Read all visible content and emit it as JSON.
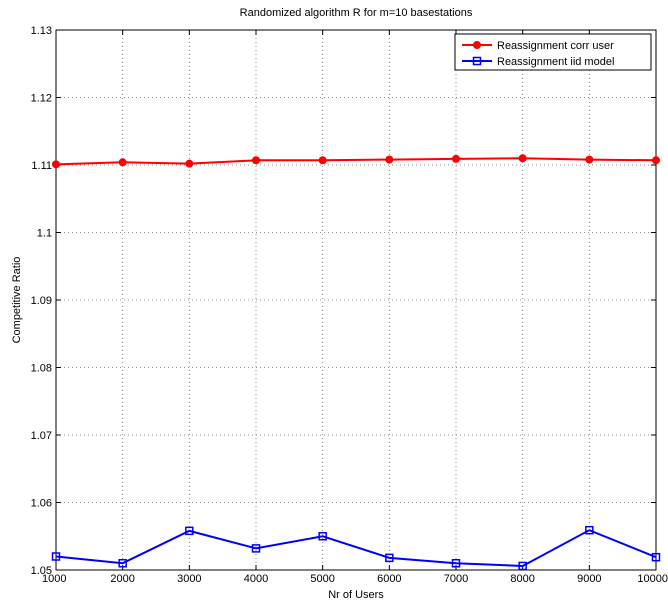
{
  "chart_data": {
    "type": "line",
    "title": "Randomized algorithm R for m=10 basestations",
    "xlabel": "Nr of Users",
    "ylabel": "Competitive Ratio",
    "xlim": [
      1000,
      10000
    ],
    "ylim": [
      1.05,
      1.13
    ],
    "x_ticks": [
      1000,
      2000,
      3000,
      4000,
      5000,
      6000,
      7000,
      8000,
      9000,
      10000
    ],
    "y_ticks": [
      1.05,
      1.06,
      1.07,
      1.08,
      1.09,
      1.1,
      1.11,
      1.12,
      1.13
    ],
    "x_tick_labels": [
      "1000",
      "2000",
      "3000",
      "4000",
      "5000",
      "6000",
      "7000",
      "8000",
      "9000",
      "10000"
    ],
    "y_tick_labels": [
      "1.05",
      "1.06",
      "1.07",
      "1.08",
      "1.09",
      "1.1",
      "1.11",
      "1.12",
      "1.13"
    ],
    "grid": true,
    "legend_position": "top-right",
    "x": [
      1000,
      2000,
      3000,
      4000,
      5000,
      6000,
      7000,
      8000,
      9000,
      10000
    ],
    "series": [
      {
        "name": "Reassignment corr user",
        "color": "#ff0000",
        "marker": "circle",
        "values": [
          1.1101,
          1.1104,
          1.1102,
          1.1107,
          1.1107,
          1.1108,
          1.1109,
          1.111,
          1.1108,
          1.1107
        ]
      },
      {
        "name": "Reassignment iid model",
        "color": "#0000ff",
        "marker": "square",
        "values": [
          1.052,
          1.051,
          1.0558,
          1.0532,
          1.055,
          1.0518,
          1.051,
          1.0506,
          1.0559,
          1.0519
        ]
      }
    ]
  }
}
